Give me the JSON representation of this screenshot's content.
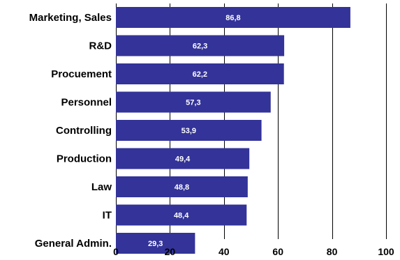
{
  "chart_data": {
    "type": "bar",
    "orientation": "horizontal",
    "categories": [
      "Marketing, Sales",
      "R&D",
      "Procuement",
      "Personnel",
      "Controlling",
      "Production",
      "Law",
      "IT",
      "General Admin."
    ],
    "values": [
      86.8,
      62.3,
      62.2,
      57.3,
      53.9,
      49.4,
      48.8,
      48.4,
      29.3
    ],
    "value_labels": [
      "86,8",
      "62,3",
      "62,2",
      "57,3",
      "53,9",
      "49,4",
      "48,8",
      "48,4",
      "29,3"
    ],
    "xlim": [
      0,
      100
    ],
    "x_ticks": [
      0,
      20,
      40,
      60,
      80,
      100
    ],
    "x_tick_labels": [
      "0",
      "20",
      "40",
      "60",
      "80",
      "100"
    ],
    "grid": "vertical",
    "legend": "none",
    "bar_color": "#333399"
  }
}
